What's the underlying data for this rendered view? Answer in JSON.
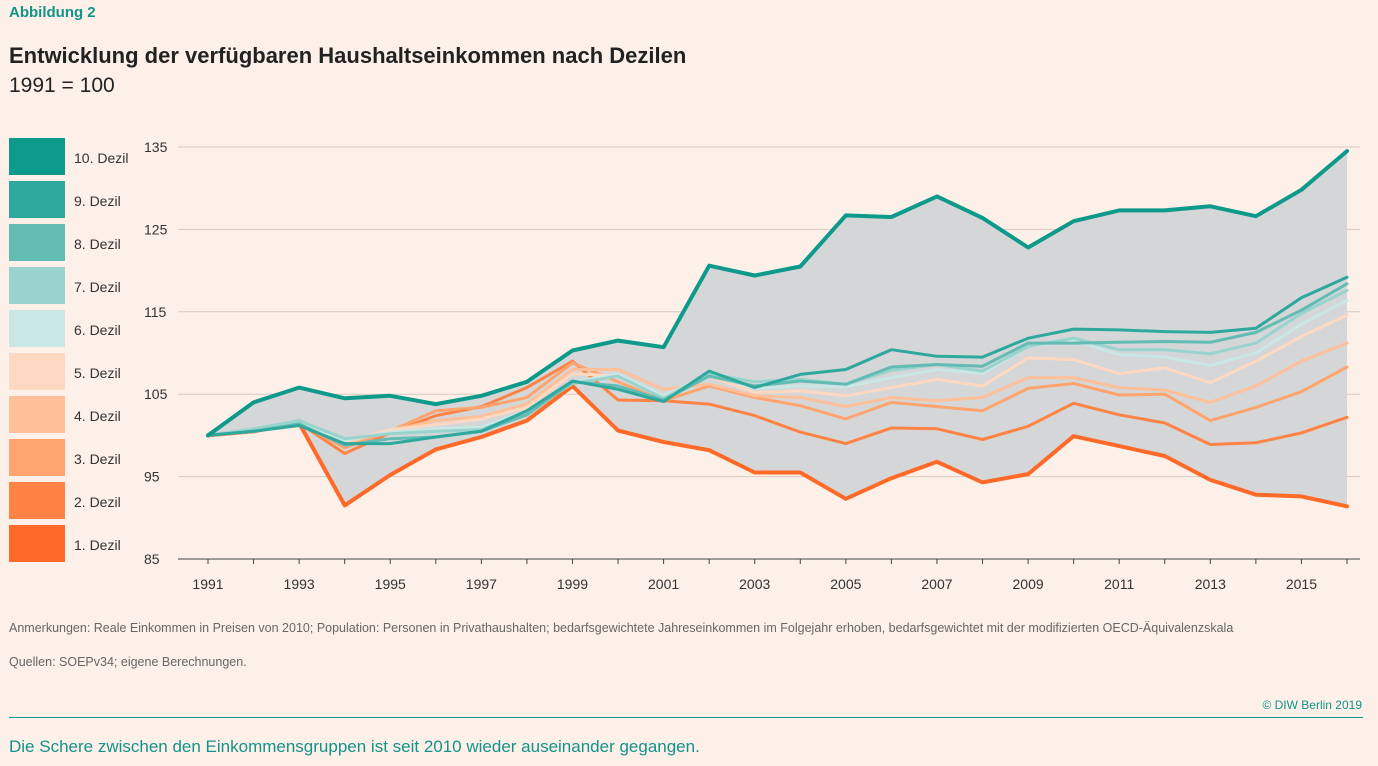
{
  "figure_label": "Abbildung 2",
  "title": "Entwicklung der verfügbaren Haushaltseinkommen nach Dezilen",
  "subtitle": "1991 = 100",
  "notes": "Anmerkungen: Reale Einkommen in Preisen von 2010; Population: Personen in Privathaushalten; bedarfsgewichtete Jahreseinkommen im Folgejahr erhoben, bedarfsgewichtet mit der modifizierten OECD-Äquivalenzskala",
  "source": "Quellen: SOEPv34; eigene Berechnungen.",
  "copyright": "© DIW Berlin 2019",
  "caption": "Die Schere zwischen den Einkommensgruppen ist seit 2010 wieder auseinander gegangen.",
  "colors": {
    "band": "#d4d6d8",
    "grid": "#d9c9bf",
    "axis": "#444444"
  },
  "chart_data": {
    "type": "line",
    "title": "Entwicklung der verfügbaren Haushaltseinkommen nach Dezilen",
    "xlabel": "",
    "ylabel": "1991 = 100",
    "ylim": [
      85,
      135
    ],
    "yticks": [
      85,
      95,
      105,
      115,
      125,
      135
    ],
    "x": [
      1991,
      1992,
      1993,
      1994,
      1995,
      1996,
      1997,
      1998,
      1999,
      2000,
      2001,
      2002,
      2003,
      2004,
      2005,
      2006,
      2007,
      2008,
      2009,
      2010,
      2011,
      2012,
      2013,
      2014,
      2015,
      2016
    ],
    "xticks": [
      1991,
      1993,
      1995,
      1997,
      1999,
      2001,
      2003,
      2005,
      2007,
      2009,
      2011,
      2013,
      2015
    ],
    "band": "shaded range between 1. Dezil and 10. Dezil",
    "series": [
      {
        "name": "1. Dezil",
        "color": "#ff6a28",
        "values": [
          100,
          100.5,
          101.5,
          91.5,
          95.2,
          98.3,
          99.8,
          101.8,
          106,
          100.6,
          99.2,
          98.2,
          95.5,
          95.5,
          92.3,
          94.8,
          96.8,
          94.3,
          95.3,
          99.9,
          98.7,
          97.5,
          94.6,
          92.8,
          92.6,
          91.4
        ]
      },
      {
        "name": "2. Dezil",
        "color": "#ff8345",
        "values": [
          100,
          100.5,
          101.5,
          97.8,
          100.3,
          102.4,
          103.5,
          105.8,
          109,
          104.3,
          104.2,
          103.8,
          102.4,
          100.4,
          99,
          100.9,
          100.8,
          99.5,
          101.1,
          103.9,
          102.5,
          101.5,
          98.9,
          99.1,
          100.3,
          102.2
        ]
      },
      {
        "name": "3. Dezil",
        "color": "#ffa46e",
        "values": [
          100,
          100.5,
          101.5,
          98.5,
          100.5,
          103,
          103.4,
          104.6,
          108.8,
          106.5,
          104.2,
          106,
          104.6,
          103.6,
          102,
          104,
          103.5,
          103,
          105.7,
          106.3,
          104.9,
          105,
          101.8,
          103.4,
          105.3,
          108.3
        ]
      },
      {
        "name": "4. Dezil",
        "color": "#ffbf98",
        "values": [
          100,
          100.5,
          101.4,
          99,
          100.6,
          101.8,
          102.3,
          103.8,
          108,
          108,
          105.6,
          106.2,
          104.8,
          104.6,
          103.5,
          104.6,
          104.2,
          104.6,
          107,
          107,
          105.8,
          105.5,
          104,
          106,
          109,
          111.2
        ]
      },
      {
        "name": "5. Dezil",
        "color": "#ffd8c2",
        "values": [
          100,
          100.5,
          101.5,
          99.2,
          100.7,
          101.3,
          102,
          103.4,
          107.5,
          107.2,
          104.8,
          107.2,
          105.2,
          105.4,
          104.8,
          105.8,
          106.8,
          106,
          109.4,
          109.2,
          107.5,
          108.2,
          106.4,
          109,
          112,
          114.6
        ]
      },
      {
        "name": "6. Dezil",
        "color": "#c9e8e5",
        "values": [
          100,
          100.6,
          101.6,
          99.4,
          100.4,
          100.8,
          101,
          103,
          106.5,
          107.4,
          104.8,
          107.4,
          105.7,
          106,
          105.9,
          107,
          108,
          107.5,
          110.8,
          111.5,
          109.8,
          109.5,
          108.5,
          110,
          113.5,
          116.4
        ]
      },
      {
        "name": "7. Dezil",
        "color": "#98d4cd",
        "values": [
          100,
          100.8,
          101.8,
          99.6,
          100.2,
          100.5,
          100.7,
          102.8,
          106.3,
          107.2,
          104.5,
          107.5,
          106.5,
          106.8,
          106.2,
          107.9,
          108.6,
          107.8,
          110.8,
          111.8,
          110.4,
          110.4,
          109.9,
          111.2,
          114.8,
          117.6
        ]
      },
      {
        "name": "8. Dezil",
        "color": "#63bcb4",
        "values": [
          100,
          100.5,
          101.4,
          98.8,
          99.6,
          99.8,
          100.5,
          102.5,
          106.5,
          106,
          104.3,
          107.2,
          106,
          106.6,
          106.2,
          108.3,
          108.6,
          108.4,
          111.2,
          111.2,
          111.3,
          111.4,
          111.3,
          112.5,
          115.2,
          118.4
        ]
      },
      {
        "name": "9. Dezil",
        "color": "#2ea89d",
        "values": [
          100,
          100.5,
          101.2,
          99,
          99,
          99.8,
          100.5,
          103,
          106.6,
          105.6,
          104.1,
          107.8,
          105.8,
          107.4,
          108,
          110.4,
          109.6,
          109.5,
          111.8,
          112.9,
          112.8,
          112.6,
          112.5,
          113,
          116.7,
          119.2
        ]
      },
      {
        "name": "10. Dezil",
        "color": "#0d9a8a",
        "values": [
          100,
          104,
          105.8,
          104.5,
          104.8,
          103.8,
          104.8,
          106.5,
          110.3,
          111.5,
          110.7,
          120.6,
          119.4,
          120.5,
          126.7,
          126.5,
          129,
          126.4,
          122.8,
          126,
          127.3,
          127.3,
          127.8,
          126.6,
          129.8,
          134.5
        ]
      }
    ]
  }
}
